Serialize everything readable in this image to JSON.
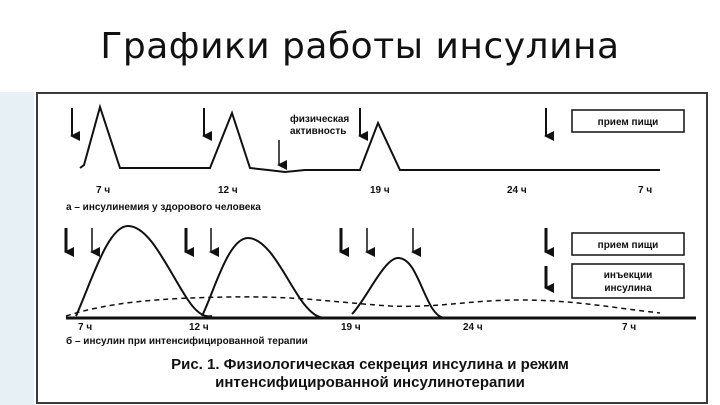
{
  "slide": {
    "title": "Графики работы инсулина"
  },
  "figure": {
    "top_panel": {
      "times": [
        "7 ч",
        "12 ч",
        "19 ч",
        "24 ч",
        "7 ч"
      ],
      "caption": "а – инсулинемия у здорового человека",
      "exercise_label_line1": "физическая",
      "exercise_label_line2": "активность",
      "legend_food": "прием пищи"
    },
    "bottom_panel": {
      "times": [
        "7 ч",
        "12 ч",
        "19 ч",
        "24 ч",
        "7 ч"
      ],
      "caption": "б – инсулин при интенсифицированной терапии",
      "legend_food": "прием пищи",
      "legend_injection_line1": "инъекции",
      "legend_injection_line2": "инсулина"
    },
    "caption_line1": "Рис. 1. Физиологическая секреция инсулина и режим",
    "caption_line2": "интенсифицированной инсулинотерапии"
  }
}
